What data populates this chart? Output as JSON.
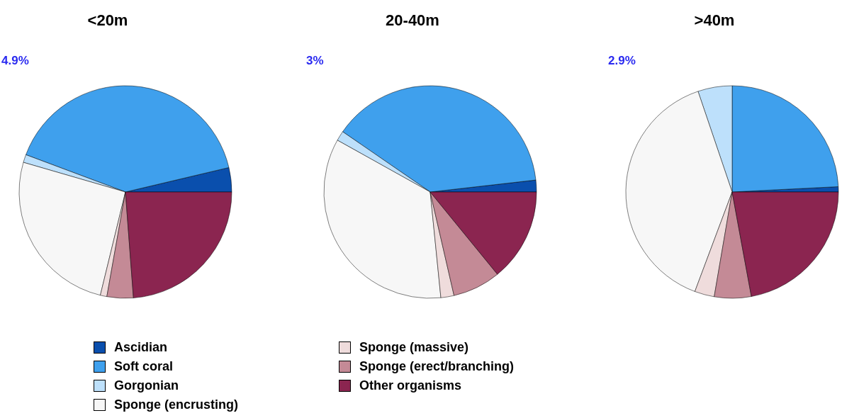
{
  "chart_data": [
    {
      "type": "pie",
      "title": "<20m",
      "annotations": [
        "4.9%"
      ],
      "legend": "bottom",
      "categories": [
        "Ascidian",
        "Soft coral",
        "Gorgonian",
        "Sponge (encrusting)",
        "Sponge (massive)",
        "Sponge (erect/branching)",
        "Other organisms"
      ],
      "values": [
        3.7,
        40.6,
        1.2,
        25.7,
        1,
        4,
        23.8
      ],
      "colors": [
        "#0a4fad",
        "#3fa0ed",
        "#bde0fb",
        "#f7f7f7",
        "#efdcdc",
        "#c48a96",
        "#8b2550"
      ]
    },
    {
      "type": "pie",
      "title": "20-40m",
      "annotations": [
        "3%"
      ],
      "categories": [
        null,
        null,
        null,
        null,
        null,
        null,
        null
      ],
      "values": [
        1.8,
        38.6,
        1.5,
        34.7,
        2,
        7.3,
        14.1
      ],
      "colors": [
        "#0a4fad",
        "#3fa0ed",
        "#bde0fb",
        "#f7f7f7",
        "#efdcdc",
        "#c48a96",
        "#8b2550"
      ]
    },
    {
      "type": "pie",
      "title": ">40m",
      "annotations": [
        "2.9%"
      ],
      "categories": [
        null,
        null,
        null,
        null,
        null,
        null,
        null
      ],
      "values": [
        0.8,
        24.2,
        5.2,
        39.1,
        3,
        5.6,
        22.1
      ],
      "colors": [
        "#0a4fad",
        "#3fa0ed",
        "#bde0fb",
        "#f7f7f7",
        "#efdcdc",
        "#c48a96",
        "#8b2550"
      ]
    }
  ]
}
